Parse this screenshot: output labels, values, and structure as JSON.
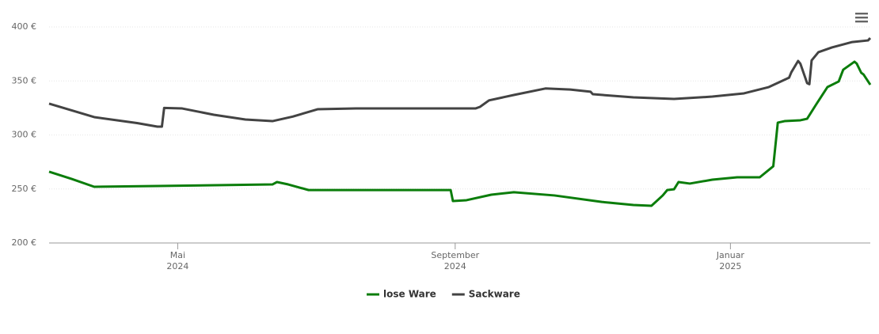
{
  "chart_data": {
    "type": "line",
    "series": [
      {
        "name": "lose Ware",
        "color": "#0b7d0b",
        "x": [
          "2024-03-05",
          "2024-03-15",
          "2024-03-25",
          "2024-04-22",
          "2024-06-12",
          "2024-06-14",
          "2024-06-19",
          "2024-06-28",
          "2024-08-30",
          "2024-08-31",
          "2024-09-06",
          "2024-09-17",
          "2024-09-27",
          "2024-10-15",
          "2024-11-05",
          "2024-11-19",
          "2024-11-27",
          "2024-12-02",
          "2024-12-04",
          "2024-12-07",
          "2024-12-09",
          "2024-12-14",
          "2024-12-24",
          "2025-01-04",
          "2025-01-14",
          "2025-01-20",
          "2025-01-22",
          "2025-01-25",
          "2025-02-01",
          "2025-02-04",
          "2025-02-08",
          "2025-02-13",
          "2025-02-18",
          "2025-02-20",
          "2025-02-25",
          "2025-02-26",
          "2025-02-28",
          "2025-03-01",
          "2025-03-04"
        ],
        "values": [
          266,
          259.3,
          252,
          252.7,
          254.2,
          256.4,
          254.2,
          249,
          249,
          238.8,
          239.6,
          244.7,
          247,
          244,
          238,
          235.2,
          234.4,
          244,
          249,
          249.7,
          256.4,
          255,
          258.6,
          260.8,
          260.8,
          271,
          311.4,
          312.8,
          313.6,
          315,
          328.2,
          344.3,
          349.5,
          360.4,
          367.8,
          366,
          357.5,
          356,
          346.5
        ]
      },
      {
        "name": "Sackware",
        "color": "#434343",
        "x": [
          "2024-03-05",
          "2024-03-25",
          "2024-04-13",
          "2024-04-22",
          "2024-04-24",
          "2024-04-25",
          "2024-05-03",
          "2024-05-17",
          "2024-05-31",
          "2024-06-12",
          "2024-06-21",
          "2024-07-02",
          "2024-07-19",
          "2024-09-10",
          "2024-09-12",
          "2024-09-16",
          "2024-09-27",
          "2024-10-11",
          "2024-10-22",
          "2024-10-31",
          "2024-11-01",
          "2024-11-19",
          "2024-12-07",
          "2024-12-24",
          "2025-01-07",
          "2025-01-18",
          "2025-01-27",
          "2025-01-28",
          "2025-01-31",
          "2025-02-01",
          "2025-02-04",
          "2025-02-05",
          "2025-02-06",
          "2025-02-09",
          "2025-02-15",
          "2025-02-24",
          "2025-03-03",
          "2025-03-04"
        ],
        "values": [
          329,
          316.5,
          311,
          307.7,
          307.7,
          325,
          324.5,
          318.7,
          314.3,
          312.8,
          317,
          323.8,
          324.5,
          324.5,
          326,
          332,
          337,
          343,
          342,
          340,
          337.7,
          334.8,
          333.3,
          335.5,
          338.5,
          344.3,
          353,
          358,
          368.5,
          366,
          348,
          347,
          369,
          376.6,
          381,
          386,
          387.5,
          389.7
        ]
      }
    ],
    "xlim": [
      "2024-03-05",
      "2025-03-04"
    ],
    "xticks": [
      {
        "value": "2024-05-01",
        "label": [
          "Mai",
          "2024"
        ]
      },
      {
        "value": "2024-09-01",
        "label": [
          "September",
          "2024"
        ]
      },
      {
        "value": "2025-01-01",
        "label": [
          "Januar",
          "2025"
        ]
      }
    ],
    "ylim": [
      200,
      400
    ],
    "yticks": [
      {
        "value": 200,
        "label": "200 €"
      },
      {
        "value": 250,
        "label": "250 €"
      },
      {
        "value": 300,
        "label": "300 €"
      },
      {
        "value": 350,
        "label": "350 €"
      },
      {
        "value": 400,
        "label": "400 €"
      }
    ],
    "grid": true,
    "legend": "bottom"
  }
}
